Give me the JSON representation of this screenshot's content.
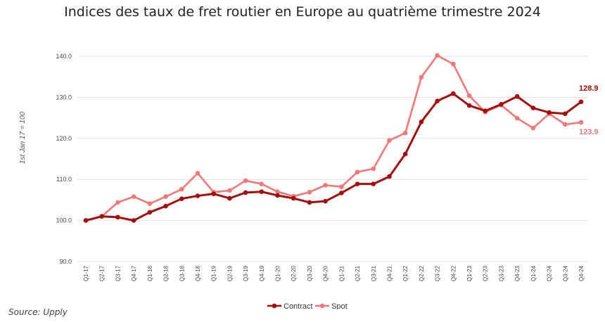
{
  "page": {
    "title": "Indices des taux de fret routier en Europe au quatrième trimestre 2024",
    "source": "Source: Upply"
  },
  "chart_data": {
    "type": "line",
    "title": "Indices des taux de fret routier en Europe au quatrième trimestre 2024",
    "xlabel": "",
    "ylabel": "1st Jan 17 = 100",
    "ylim": [
      90,
      140
    ],
    "yticks": [
      90,
      100,
      110,
      120,
      130,
      140
    ],
    "ytick_labels": [
      "90.0",
      "100.0",
      "110.0",
      "120.0",
      "130.0",
      "140.0"
    ],
    "grid": true,
    "legend": "bottom",
    "categories": [
      "Q1-17",
      "Q2-17",
      "Q3-17",
      "Q4-17",
      "Q1-18",
      "Q2-18",
      "Q3-18",
      "Q4-18",
      "Q1-19",
      "Q2-19",
      "Q3-19",
      "Q4-19",
      "Q1-20",
      "Q2-20",
      "Q3-20",
      "Q4-20",
      "Q1-21",
      "Q2-21",
      "Q3-21",
      "Q4-21",
      "Q1-22",
      "Q2-22",
      "Q3-22",
      "Q4-22",
      "Q1-23",
      "Q2-23",
      "Q3-23",
      "Q4-23",
      "Q1-24",
      "Q2-24",
      "Q3-24",
      "Q4-24"
    ],
    "series": [
      {
        "name": "Contract",
        "color": "#a50e0e",
        "values": [
          100.0,
          101.0,
          100.8,
          100.0,
          102.0,
          103.5,
          105.3,
          106.0,
          106.5,
          105.4,
          106.8,
          107.0,
          106.1,
          105.4,
          104.4,
          104.7,
          106.7,
          108.9,
          108.9,
          110.7,
          116.2,
          124.0,
          129.1,
          130.9,
          128.0,
          126.7,
          128.3,
          130.2,
          127.4,
          126.3,
          126.0,
          128.9
        ],
        "end_label": "128.9"
      },
      {
        "name": "Spot",
        "color": "#f07878",
        "values": [
          100.0,
          101.0,
          104.4,
          105.8,
          104.1,
          105.8,
          107.6,
          111.5,
          106.9,
          107.3,
          109.7,
          108.9,
          107.0,
          105.9,
          106.9,
          108.6,
          108.2,
          111.8,
          112.6,
          119.5,
          121.3,
          134.9,
          140.2,
          138.1,
          130.4,
          126.4,
          128.1,
          124.9,
          122.5,
          126.0,
          123.4,
          123.9
        ],
        "end_label": "123.9"
      }
    ]
  }
}
